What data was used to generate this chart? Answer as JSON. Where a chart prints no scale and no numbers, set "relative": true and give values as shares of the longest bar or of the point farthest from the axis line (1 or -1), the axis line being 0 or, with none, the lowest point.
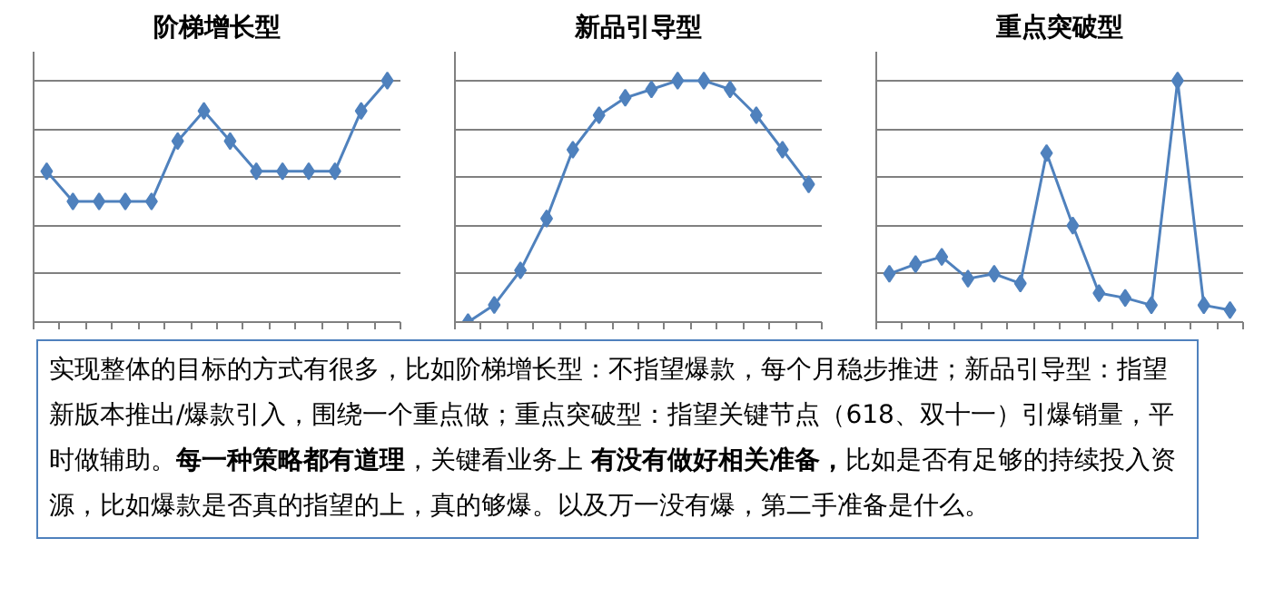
{
  "chart_data": [
    {
      "type": "line",
      "title": "阶梯增长型",
      "relative": true,
      "categories": [
        null,
        null,
        null,
        null,
        null,
        null,
        null,
        null,
        null,
        null,
        null,
        null,
        null,
        null
      ],
      "series": [
        {
          "color": "#4f81bd",
          "values": [
            0.625,
            0.5,
            0.5,
            0.5,
            0.5,
            0.75,
            0.875,
            0.75,
            0.625,
            0.625,
            0.625,
            0.625,
            0.875,
            1
          ]
        }
      ],
      "marker": "diamond",
      "grid": "y",
      "tick_labels": false
    },
    {
      "type": "line",
      "title": "新品引导型",
      "relative": true,
      "categories": [
        null,
        null,
        null,
        null,
        null,
        null,
        null,
        null,
        null,
        null,
        null,
        null,
        null,
        null
      ],
      "series": [
        {
          "color": "#4f81bd",
          "values": [
            0,
            0.071,
            0.214,
            0.429,
            0.714,
            0.857,
            0.929,
            0.964,
            1,
            1,
            0.964,
            0.857,
            0.714,
            0.571
          ]
        }
      ],
      "marker": "diamond",
      "grid": "y",
      "tick_labels": false
    },
    {
      "type": "line",
      "title": "重点突破型",
      "relative": true,
      "categories": [
        null,
        null,
        null,
        null,
        null,
        null,
        null,
        null,
        null,
        null,
        null,
        null,
        null,
        null
      ],
      "series": [
        {
          "color": "#4f81bd",
          "values": [
            0.2,
            0.24,
            0.27,
            0.18,
            0.2,
            0.16,
            0.7,
            0.4,
            0.12,
            0.1,
            0.07,
            1,
            0.07,
            0.05
          ]
        }
      ],
      "marker": "diamond",
      "grid": "y",
      "tick_labels": false
    },
    {
      "type": "other",
      "annotations": [
        "实现整体的目标的方式有很多，比如阶梯增长型：不指望爆款，每个月稳步推进；新品引导型：指望新版本推出/爆款引入，围绕一个重点做；重点突破型：指望关键节点（618、双十一）引爆销量，平时做辅助。",
        "每一种策略都有道理",
        "，关键看业务上 ",
        "有没有做好相关准备，",
        "比如是否有足够的持续投入资源，比如爆款是否真的指望的上，真的够爆。以及万一没有爆，第二手准备是什么。"
      ]
    }
  ]
}
